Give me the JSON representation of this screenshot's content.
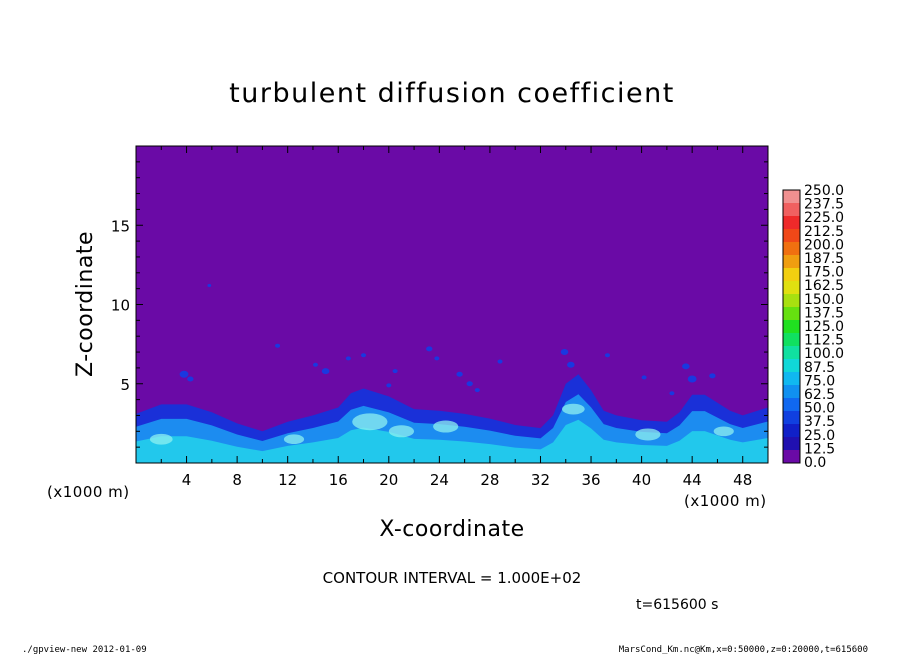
{
  "chart_data": {
    "type": "heatmap",
    "title": "turbulent diffusion coefficient",
    "xlabel": "X-coordinate",
    "ylabel": "Z-coordinate",
    "x_unit": "(x1000 m)",
    "y_unit": "(x1000 m)",
    "xlim": [
      0,
      50
    ],
    "ylim": [
      0,
      20
    ],
    "x_ticks": [
      "4",
      "8",
      "12",
      "16",
      "20",
      "24",
      "28",
      "32",
      "36",
      "40",
      "44",
      "48"
    ],
    "y_ticks": [
      "5",
      "10",
      "15"
    ],
    "x_tick_values": [
      4,
      8,
      12,
      16,
      20,
      24,
      28,
      32,
      36,
      40,
      44,
      48
    ],
    "y_tick_values": [
      5,
      10,
      15
    ],
    "colorbar_labels": [
      "250.0",
      "237.5",
      "225.0",
      "212.5",
      "200.0",
      "187.5",
      "175.0",
      "162.5",
      "150.0",
      "137.5",
      "125.0",
      "112.5",
      "100.0",
      "87.5",
      "75.0",
      "62.5",
      "50.0",
      "37.5",
      "25.0",
      "12.5",
      "0.0"
    ],
    "colorbar_colors": [
      "#f09090",
      "#f06060",
      "#ee2a2a",
      "#f04818",
      "#f07010",
      "#f09e10",
      "#f2cf10",
      "#e0e010",
      "#a8e010",
      "#66e010",
      "#20e020",
      "#10e060",
      "#10e0a0",
      "#10d8d8",
      "#10b8f0",
      "#1090f0",
      "#1068f0",
      "#1040e0",
      "#1020c8",
      "#2010b0",
      "#6a0aa6"
    ],
    "boundary_layer_profile": [
      [
        0,
        3.1
      ],
      [
        2,
        3.7
      ],
      [
        4,
        3.7
      ],
      [
        6,
        3.2
      ],
      [
        8,
        2.5
      ],
      [
        10,
        2.0
      ],
      [
        12,
        2.6
      ],
      [
        14,
        3.0
      ],
      [
        16,
        3.5
      ],
      [
        17,
        4.4
      ],
      [
        18,
        4.7
      ],
      [
        20,
        4.2
      ],
      [
        22,
        3.4
      ],
      [
        24,
        3.3
      ],
      [
        26,
        3.1
      ],
      [
        28,
        2.8
      ],
      [
        30,
        2.4
      ],
      [
        32,
        2.2
      ],
      [
        33,
        3.0
      ],
      [
        34,
        5.0
      ],
      [
        35,
        5.6
      ],
      [
        36,
        4.6
      ],
      [
        37,
        3.3
      ],
      [
        38,
        3.0
      ],
      [
        40,
        2.7
      ],
      [
        42,
        2.6
      ],
      [
        43,
        3.2
      ],
      [
        44,
        4.3
      ],
      [
        45,
        4.3
      ],
      [
        47,
        3.3
      ],
      [
        48,
        3.0
      ],
      [
        50,
        3.5
      ]
    ]
  },
  "contour_interval": "CONTOUR INTERVAL = 1.000E+02",
  "time_label": "t=615600  s",
  "footer_left": "./gpview-new   2012-01-09",
  "footer_right": "MarsCond_Km.nc@Km,x=0:50000,z=0:20000,t=615600"
}
